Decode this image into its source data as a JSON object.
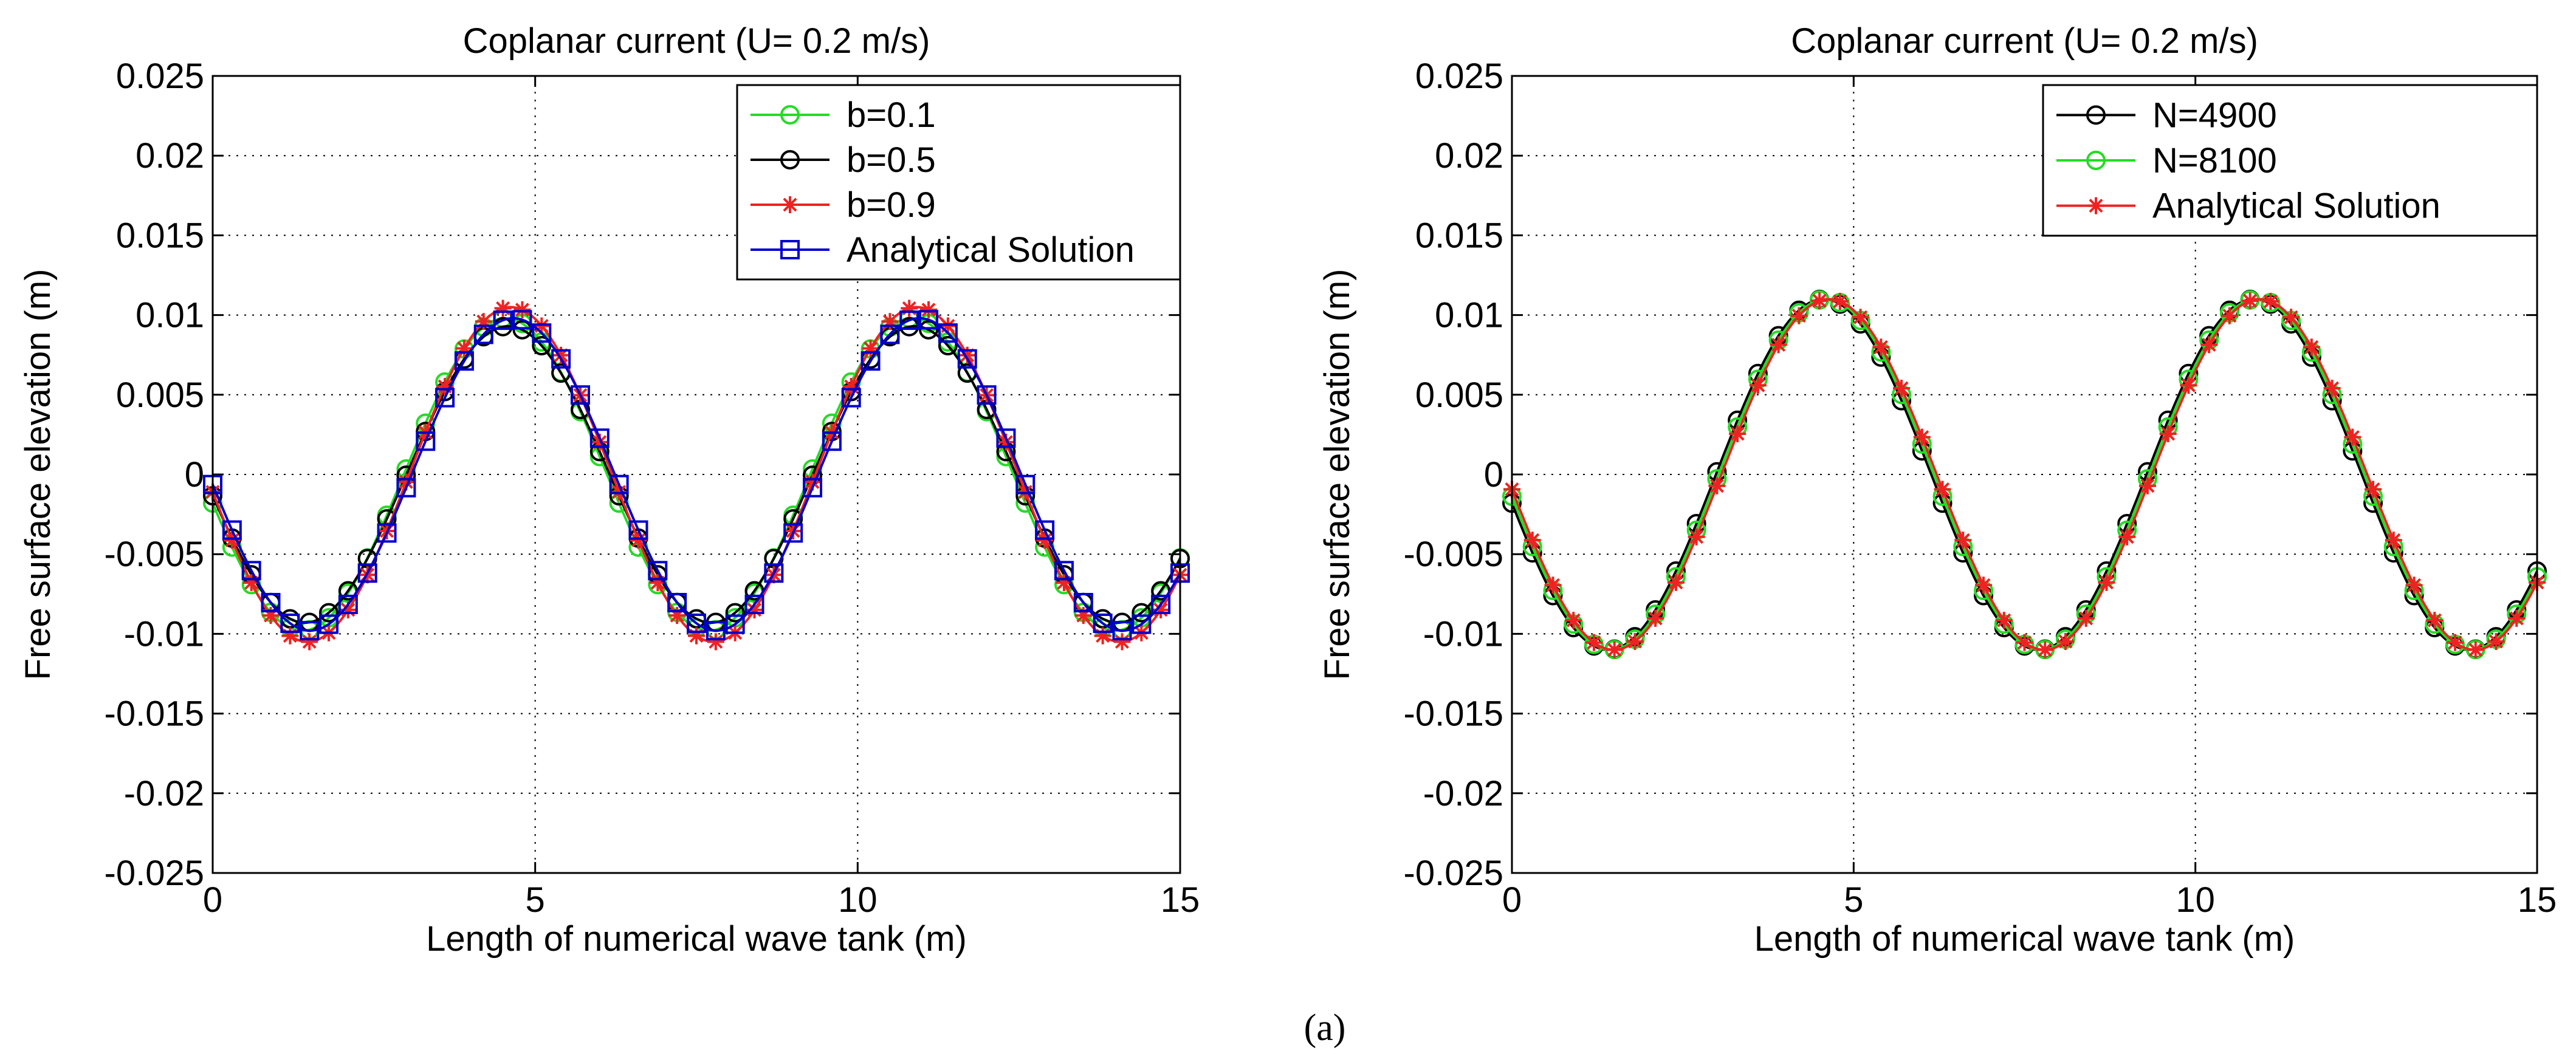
{
  "caption": "(a)",
  "chart_data": [
    {
      "type": "line",
      "title": "Coplanar current (U= 0.2 m/s)",
      "xlabel": "Length of numerical wave tank (m)",
      "ylabel": "Free surface elevation (m)",
      "xlim": [
        0,
        15
      ],
      "ylim": [
        -0.025,
        0.025
      ],
      "xticks": [
        "0",
        "5",
        "10",
        "15"
      ],
      "yticks": [
        "0.025",
        "0.02",
        "0.015",
        "0.01",
        "0.005",
        "0",
        "-0.005",
        "-0.01",
        "-0.015",
        "-0.02",
        "-0.025"
      ],
      "grid": true,
      "legend_position": "top-right",
      "wave": {
        "amplitude": 0.01,
        "period": 6.3,
        "peak_x": 4.6,
        "x_start": 0,
        "x_end": 15,
        "x_step": 0.3
      },
      "series": [
        {
          "name": "b=0.1",
          "color": "#22dd22",
          "marker": "circle",
          "amplitude": 0.0098
        },
        {
          "name": "b=0.5",
          "color": "#000000",
          "marker": "circle",
          "amplitude": 0.0093
        },
        {
          "name": "b=0.9",
          "color": "#ee2222",
          "marker": "star",
          "amplitude": 0.0105
        },
        {
          "name": "Analytical Solution",
          "color": "#0000cc",
          "marker": "square",
          "amplitude": 0.0098
        }
      ]
    },
    {
      "type": "line",
      "title": "Coplanar current (U= 0.2 m/s)",
      "xlabel": "Length of numerical wave tank (m)",
      "ylabel": "Free surface elevation (m)",
      "xlim": [
        0,
        15
      ],
      "ylim": [
        -0.025,
        0.025
      ],
      "xticks": [
        "0",
        "5",
        "10",
        "15"
      ],
      "yticks": [
        "0.025",
        "0.02",
        "0.015",
        "0.01",
        "0.005",
        "0",
        "-0.005",
        "-0.01",
        "-0.015",
        "-0.02",
        "-0.025"
      ],
      "grid": true,
      "legend_position": "top-right",
      "wave": {
        "amplitude": 0.011,
        "period": 6.3,
        "peak_x": 4.6,
        "x_start": 0,
        "x_end": 15,
        "x_step": 0.3
      },
      "series": [
        {
          "name": "N=4900",
          "color": "#000000",
          "marker": "circle",
          "amplitude": 0.011
        },
        {
          "name": "N=8100",
          "color": "#22dd22",
          "marker": "circle",
          "amplitude": 0.011
        },
        {
          "name": "Analytical Solution",
          "color": "#ee2222",
          "marker": "star",
          "amplitude": 0.011
        }
      ]
    }
  ]
}
